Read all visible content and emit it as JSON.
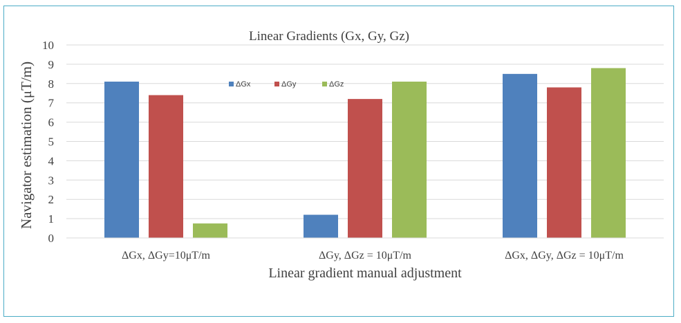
{
  "chart_data": {
    "type": "bar",
    "title": "Linear Gradients (Gx, Gy, Gz)",
    "xlabel": "Linear gradient manual adjustment",
    "ylabel": "Navigator estimation (μT/m)",
    "categories": [
      "ΔGx, ΔGy=10μT/m",
      "ΔGy, ΔGz = 10μT/m",
      "ΔGx, ΔGy, ΔGz = 10μT/m"
    ],
    "series": [
      {
        "name": "ΔGx",
        "color": "#4f81bd",
        "values": [
          8.1,
          1.2,
          8.5
        ]
      },
      {
        "name": "ΔGy",
        "color": "#c0504d",
        "values": [
          7.4,
          7.2,
          7.8
        ]
      },
      {
        "name": "ΔGz",
        "color": "#9bbb59",
        "values": [
          0.75,
          8.1,
          8.8
        ]
      }
    ],
    "ylim": [
      0,
      10
    ],
    "yticks": [
      "0",
      "1",
      "2",
      "3",
      "4",
      "5",
      "6",
      "7",
      "8",
      "9",
      "10"
    ],
    "grid": true,
    "legend_position": "top-center"
  }
}
